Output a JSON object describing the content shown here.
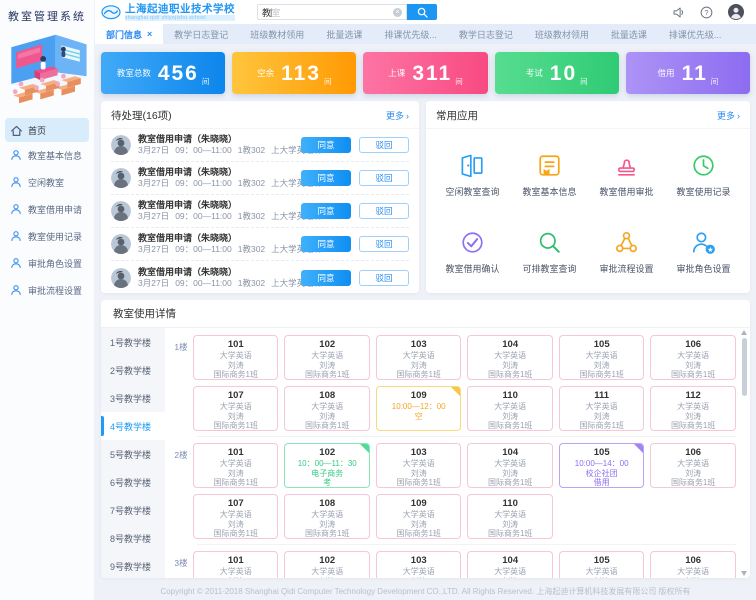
{
  "brand": {
    "system_title": "教室管理系统"
  },
  "logo": {
    "name": "上海起迪职业技术学校",
    "subtitle": "shanghai qidi zhiyejishu school"
  },
  "header": {
    "search_typed": "教",
    "search_suggestion": "室"
  },
  "sidebar": {
    "items": [
      {
        "label": "首页",
        "icon": "home-icon",
        "active": true
      },
      {
        "label": "教室基本信息",
        "icon": "user-icon",
        "active": false
      },
      {
        "label": "空闲教室",
        "icon": "user-icon",
        "active": false
      },
      {
        "label": "教室借用申请",
        "icon": "user-icon",
        "active": false
      },
      {
        "label": "教室使用记录",
        "icon": "user-icon",
        "active": false
      },
      {
        "label": "审批角色设置",
        "icon": "user-icon",
        "active": false
      },
      {
        "label": "审批流程设置",
        "icon": "user-icon",
        "active": false
      }
    ]
  },
  "tabs": [
    {
      "label": "部门信息",
      "active": true
    },
    {
      "label": "教学日志登记",
      "active": false
    },
    {
      "label": "班级教材领用",
      "active": false
    },
    {
      "label": "批量选课",
      "active": false
    },
    {
      "label": "排课优先级...",
      "active": false
    },
    {
      "label": "教学日志登记",
      "active": false
    },
    {
      "label": "班级教材领用",
      "active": false
    },
    {
      "label": "批量选课",
      "active": false
    },
    {
      "label": "排课优先级...",
      "active": false
    }
  ],
  "stats": [
    {
      "label": "教室总数",
      "value": "456",
      "unit": "间",
      "from": "#41aaf8",
      "to": "#0c85eb"
    },
    {
      "label": "空余",
      "value": "113",
      "unit": "间",
      "from": "#ffc53d",
      "to": "#ff9a03"
    },
    {
      "label": "上课",
      "value": "311",
      "unit": "间",
      "from": "#fd74a4",
      "to": "#f84a82"
    },
    {
      "label": "考试",
      "value": "10",
      "unit": "间",
      "from": "#57dd90",
      "to": "#2fcb74"
    },
    {
      "label": "借用",
      "value": "11",
      "unit": "间",
      "from": "#ad93f6",
      "to": "#8d6cf0"
    }
  ],
  "pending": {
    "title": "待处理(16项)",
    "more_label": "更多",
    "approve_label": "同意",
    "reject_label": "驳回",
    "items": [
      {
        "title": "教室借用申请（朱晓晓）",
        "date": "3月27日",
        "time": "09：00—11:00",
        "room": "1教302",
        "note": "上大学英语课"
      },
      {
        "title": "教室借用申请（朱晓晓）",
        "date": "3月27日",
        "time": "09：00—11:00",
        "room": "1教302",
        "note": "上大学英语课"
      },
      {
        "title": "教室借用申请（朱晓晓）",
        "date": "3月27日",
        "time": "09：00—11:00",
        "room": "1教302",
        "note": "上大学英语课"
      },
      {
        "title": "教室借用申请（朱晓晓）",
        "date": "3月27日",
        "time": "09：00—11:00",
        "room": "1教302",
        "note": "上大学英语课"
      },
      {
        "title": "教室借用申请（朱晓晓）",
        "date": "3月27日",
        "time": "09：00—11:00",
        "room": "1教302",
        "note": "上大学英语课"
      }
    ]
  },
  "apps": {
    "title": "常用应用",
    "more_label": "更多",
    "items": [
      {
        "label": "空闲教室查询",
        "icon": "door-icon",
        "color": "#2b9ff2"
      },
      {
        "label": "教室基本信息",
        "icon": "bookmark-icon",
        "color": "#f8a415"
      },
      {
        "label": "教室借用审批",
        "icon": "stamp-icon",
        "color": "#f5568c"
      },
      {
        "label": "教室使用记录",
        "icon": "clock-icon",
        "color": "#35cb68"
      },
      {
        "label": "教室借用确认",
        "icon": "check-circle-icon",
        "color": "#8f6ff0"
      },
      {
        "label": "可排教室查询",
        "icon": "magnifier-icon",
        "color": "#2bbf6e"
      },
      {
        "label": "审批流程设置",
        "icon": "flow-icon",
        "color": "#f5a623"
      },
      {
        "label": "审批角色设置",
        "icon": "user-star-icon",
        "color": "#2b9ff2"
      }
    ]
  },
  "usage": {
    "title": "教室使用详情",
    "buildings": [
      {
        "label": "1号教学楼",
        "active": false
      },
      {
        "label": "2号教学楼",
        "active": false
      },
      {
        "label": "3号教学楼",
        "active": false
      },
      {
        "label": "4号教学楼",
        "active": true
      },
      {
        "label": "5号教学楼",
        "active": false
      },
      {
        "label": "6号教学楼",
        "active": false
      },
      {
        "label": "7号教学楼",
        "active": false
      },
      {
        "label": "8号教学楼",
        "active": false
      },
      {
        "label": "9号教学楼",
        "active": false
      }
    ],
    "floors": [
      {
        "label": "1楼",
        "rooms": [
          {
            "no": "101",
            "type": "class",
            "lines": [
              "大学英语",
              "刘涛",
              "国际商务1班"
            ]
          },
          {
            "no": "102",
            "type": "class",
            "lines": [
              "大学英语",
              "刘涛",
              "国际商务1班"
            ]
          },
          {
            "no": "103",
            "type": "class",
            "lines": [
              "大学英语",
              "刘涛",
              "国际商务1班"
            ]
          },
          {
            "no": "104",
            "type": "class",
            "lines": [
              "大学英语",
              "刘涛",
              "国际商务1班"
            ]
          },
          {
            "no": "105",
            "type": "class",
            "lines": [
              "大学英语",
              "刘涛",
              "国际商务1班"
            ]
          },
          {
            "no": "106",
            "type": "class",
            "lines": [
              "大学英语",
              "刘涛",
              "国际商务1班"
            ]
          },
          {
            "no": "107",
            "type": "class",
            "lines": [
              "大学英语",
              "刘涛",
              "国际商务1班"
            ]
          },
          {
            "no": "108",
            "type": "class",
            "lines": [
              "大学英语",
              "刘涛",
              "国际商务1班"
            ]
          },
          {
            "no": "109",
            "type": "free",
            "lines": [
              "10:00—12：00",
              "空"
            ]
          },
          {
            "no": "110",
            "type": "class",
            "lines": [
              "大学英语",
              "刘涛",
              "国际商务1班"
            ]
          },
          {
            "no": "111",
            "type": "class",
            "lines": [
              "大学英语",
              "刘涛",
              "国际商务1班"
            ]
          },
          {
            "no": "112",
            "type": "class",
            "lines": [
              "大学英语",
              "刘涛",
              "国际商务1班"
            ]
          }
        ]
      },
      {
        "label": "2楼",
        "rooms": [
          {
            "no": "101",
            "type": "class",
            "lines": [
              "大学英语",
              "刘涛",
              "国际商务1班"
            ]
          },
          {
            "no": "102",
            "type": "exam",
            "lines": [
              "10：00—11：30",
              "电子商务",
              "考"
            ]
          },
          {
            "no": "103",
            "type": "class",
            "lines": [
              "大学英语",
              "刘涛",
              "国际商务1班"
            ]
          },
          {
            "no": "104",
            "type": "class",
            "lines": [
              "大学英语",
              "刘涛",
              "国际商务1班"
            ]
          },
          {
            "no": "105",
            "type": "borrow",
            "lines": [
              "10:00—14：00",
              "校企社团",
              "借用"
            ]
          },
          {
            "no": "106",
            "type": "class",
            "lines": [
              "大学英语",
              "刘涛",
              "国际商务1班"
            ]
          },
          {
            "no": "107",
            "type": "class",
            "lines": [
              "大学英语",
              "刘涛",
              "国际商务1班"
            ]
          },
          {
            "no": "108",
            "type": "class",
            "lines": [
              "大学英语",
              "刘涛",
              "国际商务1班"
            ]
          },
          {
            "no": "109",
            "type": "class",
            "lines": [
              "大学英语",
              "刘涛",
              "国际商务1班"
            ]
          },
          {
            "no": "110",
            "type": "class",
            "lines": [
              "大学英语",
              "刘涛",
              "国际商务1班"
            ]
          }
        ]
      },
      {
        "label": "3楼",
        "rooms": [
          {
            "no": "101",
            "type": "class",
            "lines": [
              "大学英语",
              "刘涛",
              "国际商务1班"
            ]
          },
          {
            "no": "102",
            "type": "class",
            "lines": [
              "大学英语",
              "刘涛",
              "国际商务1班"
            ]
          },
          {
            "no": "103",
            "type": "class",
            "lines": [
              "大学英语",
              "刘涛",
              "国际商务1班"
            ]
          },
          {
            "no": "104",
            "type": "class",
            "lines": [
              "大学英语",
              "刘涛",
              "国际商务1班"
            ]
          },
          {
            "no": "105",
            "type": "class",
            "lines": [
              "大学英语",
              "刘涛",
              "国际商务1班"
            ]
          },
          {
            "no": "106",
            "type": "class",
            "lines": [
              "大学英语",
              "刘涛",
              "国际商务1班"
            ]
          }
        ]
      }
    ]
  },
  "footer": {
    "copyright": "Copyright © 2011-2018 Shanghai Qidi Computer Technology Development CO.,LTD. All Rights Reserved. 上海起迪计算机科技发展有限公司 版权所有"
  }
}
